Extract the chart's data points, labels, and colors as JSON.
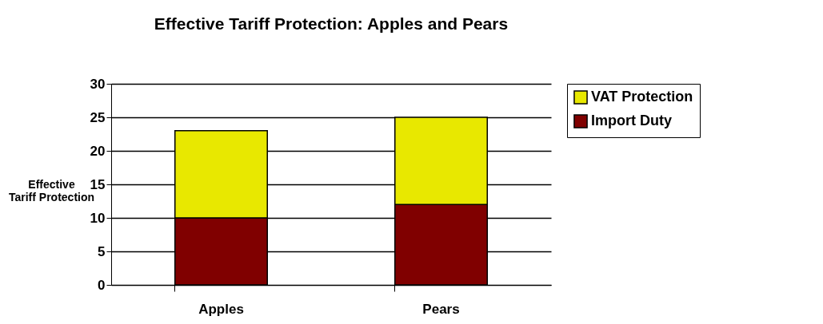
{
  "chart_data": {
    "type": "bar",
    "title": "Effective Tariff Protection: Apples and Pears",
    "ylabel": "Effective Tariff Protection",
    "categories": [
      "Apples",
      "Pears"
    ],
    "stacked": true,
    "series": [
      {
        "name": "Import Duty",
        "color": "#800000",
        "values": [
          10,
          12
        ]
      },
      {
        "name": "VAT Protection",
        "color": "#e8e800",
        "values": [
          13,
          13
        ]
      }
    ],
    "ylim": [
      0,
      30
    ],
    "yticks": [
      0,
      5,
      10,
      15,
      20,
      25,
      30
    ],
    "grid": "y",
    "legend": "right"
  }
}
